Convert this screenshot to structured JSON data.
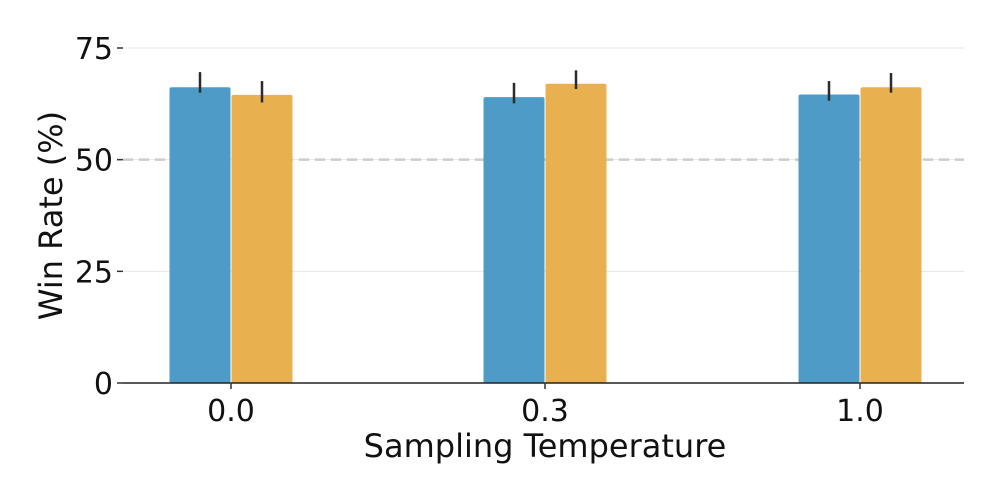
{
  "chart_data": {
    "type": "bar",
    "title": "",
    "xlabel": "Sampling Temperature",
    "ylabel": "Win Rate (%)",
    "categories": [
      "0.0",
      "0.3",
      "1.0"
    ],
    "series": [
      {
        "color": "#4e9bc8",
        "values": [
          66.2,
          64.0,
          64.6
        ],
        "error_low": [
          65.0,
          62.6,
          63.2
        ],
        "error_high": [
          69.6,
          67.2,
          67.6
        ]
      },
      {
        "color": "#e8b04f",
        "values": [
          64.5,
          67.0,
          66.2
        ],
        "error_low": [
          62.8,
          65.8,
          65.0
        ],
        "error_high": [
          67.6,
          70.0,
          69.4
        ]
      }
    ],
    "ylim": [
      0,
      75
    ],
    "yticks": [
      0,
      25,
      50,
      75
    ],
    "reference_line": {
      "y": 50,
      "style": "dashed",
      "color": "#cccccc"
    },
    "grid": true,
    "legend": "none"
  }
}
